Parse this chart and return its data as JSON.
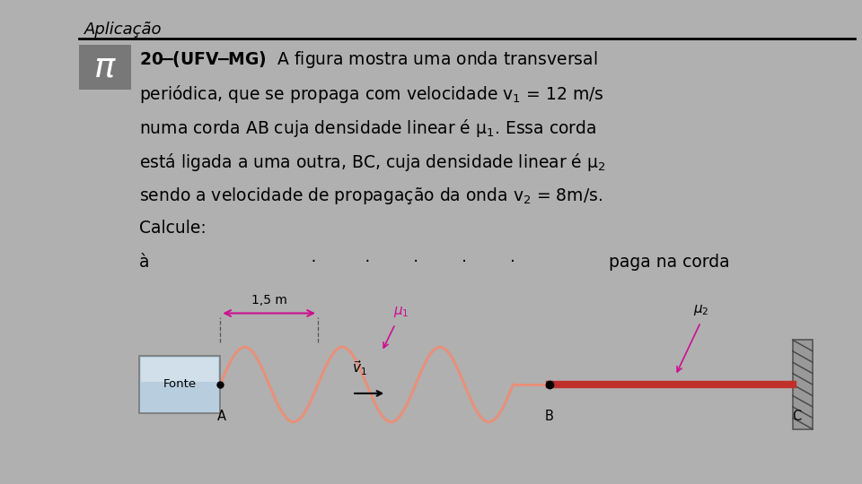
{
  "bg_color": "#b0b0b0",
  "panel_color": "#ececec",
  "title_text": "Aplicação",
  "pi_bg": "#787878",
  "body_fontsize": 13.5,
  "title_fontsize": 13,
  "wave_color": "#e8907a",
  "rope_color_bc": "#c0302a",
  "dimension_color": "#cc1090",
  "label_A": "A",
  "label_B": "B",
  "label_C": "C",
  "fonte_text": "Fonte",
  "dim_label": "1,5 m",
  "v1_label": "v⃗1",
  "mu1_label": "μ₁",
  "mu2_label": "μ₂",
  "partial_right": "paga na corda"
}
